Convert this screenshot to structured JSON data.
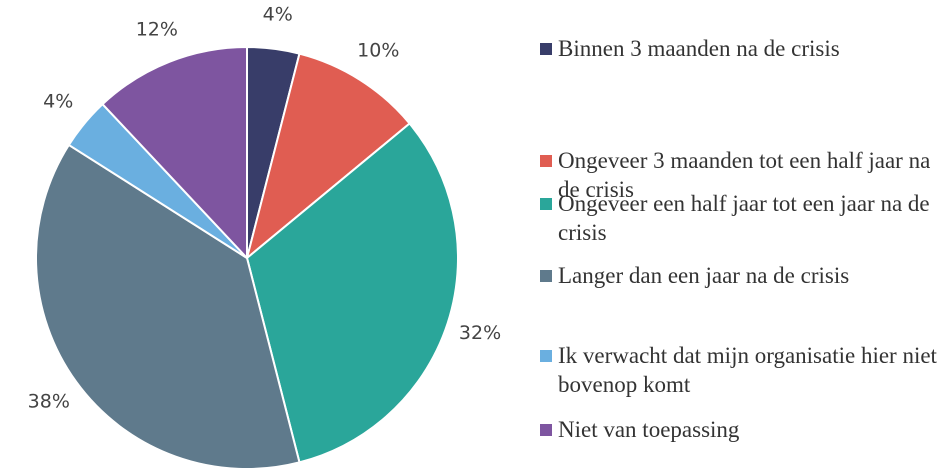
{
  "chart_data": {
    "type": "pie",
    "categories": [
      "Binnen 3 maanden na de crisis",
      "Ongeveer 3 maanden tot een half jaar na de crisis",
      "Ongeveer een half jaar tot een jaar na de crisis",
      "Langer dan een jaar na de crisis",
      "Ik verwacht dat mijn organisatie hier niet bovenop komt",
      "Niet van toepassing"
    ],
    "values": [
      4,
      10,
      32,
      38,
      4,
      12
    ],
    "value_labels": [
      "4%",
      "10%",
      "32%",
      "38%",
      "4%",
      "12%"
    ],
    "colors": [
      "#383d69",
      "#e05d52",
      "#2aa69a",
      "#5f7a8c",
      "#6aafe0",
      "#7e55a0"
    ],
    "legend": "right"
  }
}
